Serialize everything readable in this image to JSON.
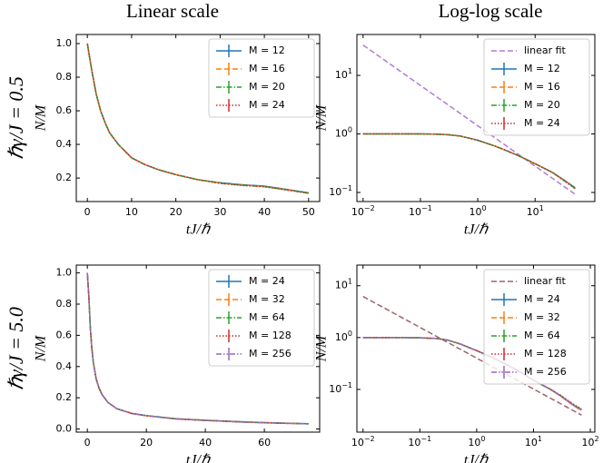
{
  "column_titles": [
    "Linear scale",
    "Log-log scale"
  ],
  "row_labels": [
    "ℏγ/J = 0.5",
    "ℏγ/J = 5.0"
  ],
  "chart_data": [
    {
      "type": "line",
      "xscale": "linear",
      "yscale": "linear",
      "xlabel": "tJ/ℏ",
      "ylabel": "N/M",
      "legend": "upper right",
      "xlim": [
        -2.5,
        52.5
      ],
      "ylim": [
        0.06,
        1.054
      ],
      "xticks": [
        0,
        10,
        20,
        30,
        40,
        50
      ],
      "yticks": [
        0.2,
        0.4,
        0.6,
        0.8,
        {
          "value": 1.0,
          "label": "1.0"
        }
      ],
      "x": [
        0,
        1,
        2,
        3,
        4,
        5,
        7,
        10,
        13,
        16,
        20,
        25,
        30,
        35,
        40,
        45,
        50
      ],
      "series": [
        {
          "name": "M = 12",
          "color": "#1f77b4",
          "dash": "solid",
          "values": [
            1.0,
            0.84,
            0.7,
            0.6,
            0.53,
            0.47,
            0.4,
            0.32,
            0.28,
            0.25,
            0.22,
            0.19,
            0.172,
            0.16,
            0.152,
            0.132,
            0.112
          ]
        },
        {
          "name": "M = 16",
          "color": "#ff7f0e",
          "dash": "dashed",
          "values": [
            1.0,
            0.84,
            0.7,
            0.6,
            0.53,
            0.47,
            0.4,
            0.32,
            0.28,
            0.25,
            0.22,
            0.19,
            0.17,
            0.158,
            0.15,
            0.13,
            0.11
          ]
        },
        {
          "name": "M = 20",
          "color": "#2ca02c",
          "dash": "dashdot",
          "values": [
            1.0,
            0.84,
            0.7,
            0.6,
            0.53,
            0.47,
            0.4,
            0.32,
            0.28,
            0.25,
            0.22,
            0.19,
            0.169,
            0.157,
            0.149,
            0.13,
            0.11
          ]
        },
        {
          "name": "M = 24",
          "color": "#d62728",
          "dash": "dotted",
          "values": [
            1.0,
            0.84,
            0.7,
            0.6,
            0.53,
            0.47,
            0.4,
            0.32,
            0.28,
            0.25,
            0.22,
            0.19,
            0.168,
            0.156,
            0.148,
            0.129,
            0.109
          ]
        }
      ]
    },
    {
      "type": "line",
      "xscale": "log",
      "yscale": "log",
      "xlabel": "tJ/ℏ",
      "ylabel": "N/M",
      "legend": "upper right",
      "xlim": [
        0.0078,
        110
      ],
      "ylim": [
        0.07,
        50
      ],
      "xticks": [
        {
          "value": 0.01,
          "label": "10",
          "sup": "−2"
        },
        {
          "value": 0.1,
          "label": "10",
          "sup": "−1"
        },
        {
          "value": 1,
          "label": "10",
          "sup": "0"
        },
        {
          "value": 10,
          "label": "10",
          "sup": "1"
        }
      ],
      "yticks": [
        {
          "value": 0.1,
          "label": "10",
          "sup": "−1"
        },
        {
          "value": 1,
          "label": "10",
          "sup": "0"
        },
        {
          "value": 10,
          "label": "10",
          "sup": "1"
        }
      ],
      "x": [
        0.01,
        0.02,
        0.05,
        0.1,
        0.2,
        0.3,
        0.5,
        1,
        2,
        3,
        5,
        10,
        20,
        30,
        50
      ],
      "series": [
        {
          "name": "linear fit",
          "color": "#b07ad6",
          "dash": "dashed",
          "x": [
            0.01,
            50
          ],
          "values": [
            33,
            0.093
          ]
        },
        {
          "name": "M = 12",
          "color": "#1f77b4",
          "dash": "solid",
          "values": [
            1,
            1,
            1,
            1,
            0.99,
            0.97,
            0.92,
            0.78,
            0.62,
            0.53,
            0.43,
            0.31,
            0.22,
            0.17,
            0.12
          ]
        },
        {
          "name": "M = 16",
          "color": "#ff7f0e",
          "dash": "dashed",
          "values": [
            1,
            1,
            1,
            1,
            0.99,
            0.97,
            0.92,
            0.78,
            0.62,
            0.53,
            0.43,
            0.31,
            0.22,
            0.168,
            0.118
          ]
        },
        {
          "name": "M = 20",
          "color": "#2ca02c",
          "dash": "dashdot",
          "values": [
            1,
            1,
            1,
            1,
            0.99,
            0.97,
            0.92,
            0.78,
            0.62,
            0.53,
            0.43,
            0.31,
            0.22,
            0.167,
            0.117
          ]
        },
        {
          "name": "M = 24",
          "color": "#d62728",
          "dash": "dotted",
          "values": [
            1,
            1,
            1,
            1,
            0.99,
            0.97,
            0.92,
            0.78,
            0.62,
            0.53,
            0.43,
            0.31,
            0.22,
            0.166,
            0.116
          ]
        }
      ]
    },
    {
      "type": "line",
      "xscale": "linear",
      "yscale": "linear",
      "xlabel": "tJ/ℏ",
      "ylabel": "N/M",
      "legend": "upper right",
      "xlim": [
        -3.75,
        78.75
      ],
      "ylim": [
        -0.02,
        1.05
      ],
      "xticks": [
        0,
        20,
        40,
        60
      ],
      "yticks": [
        {
          "value": 0.0,
          "label": "0.0"
        },
        0.2,
        0.4,
        0.6,
        0.8,
        {
          "value": 1.0,
          "label": "1.0"
        }
      ],
      "x": [
        0,
        0.5,
        1,
        1.5,
        2,
        3,
        4,
        5,
        7,
        10,
        15,
        20,
        30,
        40,
        50,
        60,
        75
      ],
      "series": [
        {
          "name": "M = 24",
          "color": "#1f77b4",
          "dash": "solid",
          "values": [
            1.0,
            0.85,
            0.65,
            0.52,
            0.43,
            0.32,
            0.26,
            0.22,
            0.17,
            0.13,
            0.1,
            0.086,
            0.066,
            0.056,
            0.048,
            0.041,
            0.034
          ]
        },
        {
          "name": "M = 32",
          "color": "#ff7f0e",
          "dash": "dashed",
          "values": [
            1.0,
            0.85,
            0.65,
            0.52,
            0.43,
            0.32,
            0.26,
            0.22,
            0.17,
            0.13,
            0.1,
            0.085,
            0.065,
            0.055,
            0.047,
            0.04,
            0.033
          ]
        },
        {
          "name": "M = 64",
          "color": "#2ca02c",
          "dash": "dashdot",
          "values": [
            1.0,
            0.85,
            0.65,
            0.52,
            0.43,
            0.32,
            0.26,
            0.22,
            0.17,
            0.13,
            0.1,
            0.085,
            0.065,
            0.055,
            0.047,
            0.04,
            0.033
          ]
        },
        {
          "name": "M = 128",
          "color": "#d62728",
          "dash": "dotted",
          "values": [
            1.0,
            0.85,
            0.65,
            0.52,
            0.43,
            0.32,
            0.26,
            0.22,
            0.17,
            0.13,
            0.1,
            0.085,
            0.065,
            0.055,
            0.047,
            0.04,
            0.033
          ]
        },
        {
          "name": "M = 256",
          "color": "#9467bd",
          "dash": "dashdotdot",
          "values": [
            1.0,
            0.85,
            0.65,
            0.52,
            0.43,
            0.32,
            0.26,
            0.22,
            0.17,
            0.13,
            0.1,
            0.085,
            0.065,
            0.055,
            0.047,
            0.04,
            0.033
          ]
        }
      ]
    },
    {
      "type": "line",
      "xscale": "log",
      "yscale": "log",
      "xlabel": "tJ/ℏ",
      "ylabel": "N/M",
      "legend": "upper right",
      "xlim": [
        0.0078,
        120
      ],
      "ylim": [
        0.015,
        25
      ],
      "xticks": [
        {
          "value": 0.01,
          "label": "10",
          "sup": "−2"
        },
        {
          "value": 0.1,
          "label": "10",
          "sup": "−1"
        },
        {
          "value": 1,
          "label": "10",
          "sup": "0"
        },
        {
          "value": 10,
          "label": "10",
          "sup": "1"
        },
        {
          "value": 100,
          "label": "10",
          "sup": "2"
        }
      ],
      "yticks": [
        {
          "value": 0.1,
          "label": "10",
          "sup": "−1"
        },
        {
          "value": 1,
          "label": "10",
          "sup": "0"
        },
        {
          "value": 10,
          "label": "10",
          "sup": "1"
        }
      ],
      "x": [
        0.01,
        0.02,
        0.05,
        0.1,
        0.2,
        0.3,
        0.5,
        1,
        2,
        3,
        5,
        10,
        20,
        30,
        50,
        70
      ],
      "series": [
        {
          "name": "linear fit",
          "color": "#a0626c",
          "dash": "dashed",
          "x": [
            0.01,
            70
          ],
          "values": [
            6.2,
            0.032
          ]
        },
        {
          "name": "M = 24",
          "color": "#1f77b4",
          "dash": "solid",
          "values": [
            1,
            1,
            1,
            0.99,
            0.96,
            0.9,
            0.76,
            0.56,
            0.4,
            0.32,
            0.24,
            0.15,
            0.1,
            0.075,
            0.05,
            0.04
          ]
        },
        {
          "name": "M = 32",
          "color": "#ff7f0e",
          "dash": "dashed",
          "values": [
            1,
            1,
            1,
            0.99,
            0.96,
            0.9,
            0.76,
            0.56,
            0.4,
            0.32,
            0.24,
            0.15,
            0.1,
            0.074,
            0.049,
            0.039
          ]
        },
        {
          "name": "M = 64",
          "color": "#2ca02c",
          "dash": "dashdot",
          "values": [
            1,
            1,
            1,
            0.99,
            0.96,
            0.9,
            0.76,
            0.56,
            0.4,
            0.32,
            0.24,
            0.15,
            0.1,
            0.076,
            0.051,
            0.041
          ]
        },
        {
          "name": "M = 128",
          "color": "#d62728",
          "dash": "dotted",
          "values": [
            1,
            1,
            1,
            0.99,
            0.96,
            0.9,
            0.76,
            0.56,
            0.4,
            0.32,
            0.24,
            0.15,
            0.1,
            0.077,
            0.052,
            0.042
          ]
        },
        {
          "name": "M = 256",
          "color": "#9467bd",
          "dash": "dashdotdot",
          "values": [
            1,
            1,
            1,
            0.99,
            0.96,
            0.9,
            0.76,
            0.56,
            0.4,
            0.32,
            0.24,
            0.15,
            0.1,
            0.075,
            0.05,
            0.04
          ]
        }
      ]
    }
  ]
}
